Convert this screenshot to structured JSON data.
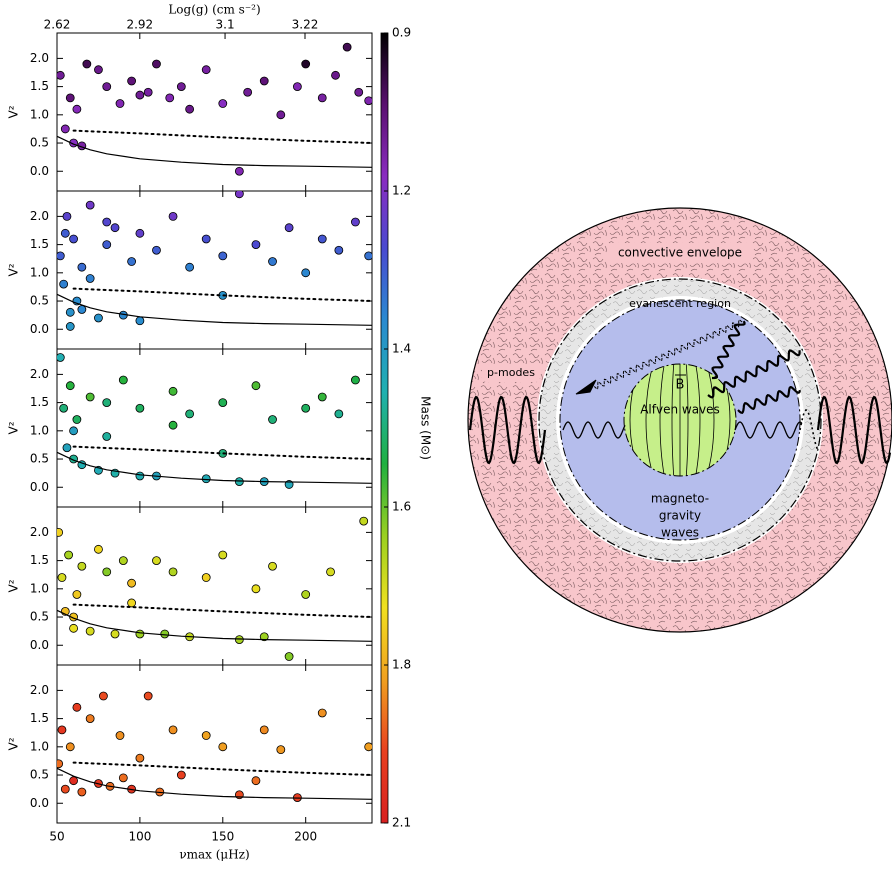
{
  "chart_data": [
    {
      "type": "scatter",
      "y_label": "V²",
      "xlim": [
        50,
        240
      ],
      "ylim": [
        -0.35,
        2.45
      ],
      "xticks": [
        50,
        100,
        150,
        200
      ],
      "yticks": [
        {
          "value": 0,
          "label": "0.0"
        },
        {
          "value": 0.5,
          "label": "0.5"
        },
        {
          "value": 1,
          "label": "1.0"
        },
        {
          "value": 1.5,
          "label": "1.5"
        },
        {
          "value": 2,
          "label": "2.0"
        }
      ],
      "x2label": "Log(g) (cm s⁻²)",
      "x2scale": "exp10",
      "x2lim": [
        2.62,
        3.3
      ],
      "x2ticks": [
        2.62,
        2.92,
        3.1,
        3.22
      ],
      "series": [
        {
          "x": [
            52,
            55,
            58,
            60,
            65,
            68,
            75,
            80,
            88,
            95,
            100,
            105,
            110,
            118,
            125,
            130,
            140,
            150,
            160,
            165,
            175,
            185,
            195,
            200,
            210,
            218,
            225,
            232,
            238,
            62
          ],
          "y": [
            1.7,
            0.75,
            1.3,
            0.5,
            0.45,
            1.9,
            1.8,
            1.5,
            1.2,
            1.6,
            1.35,
            1.4,
            1.9,
            1.3,
            1.5,
            1.1,
            1.8,
            1.2,
            0.0,
            1.4,
            1.6,
            1.0,
            1.5,
            1.9,
            1.3,
            1.7,
            2.2,
            1.4,
            1.25,
            1.1
          ],
          "mass": [
            1.1,
            1.15,
            1.05,
            1.18,
            1.12,
            1.0,
            1.08,
            1.1,
            1.15,
            1.05,
            1.1,
            1.12,
            1.02,
            1.15,
            1.1,
            1.08,
            1.12,
            1.18,
            1.15,
            1.1,
            1.05,
            1.1,
            1.15,
            0.95,
            1.12,
            1.08,
            1.0,
            1.1,
            1.14,
            1.16
          ]
        }
      ],
      "curves": [
        {
          "style": "solid",
          "x": [
            50,
            60,
            70,
            80,
            100,
            125,
            150,
            175,
            200,
            240
          ],
          "y": [
            0.62,
            0.48,
            0.38,
            0.31,
            0.22,
            0.16,
            0.12,
            0.1,
            0.09,
            0.07
          ]
        },
        {
          "style": "dotted",
          "x": [
            60,
            100,
            150,
            200,
            240
          ],
          "y": [
            0.72,
            0.67,
            0.6,
            0.54,
            0.5
          ]
        }
      ]
    },
    {
      "type": "scatter",
      "y_label": "V²",
      "xlim": [
        50,
        240
      ],
      "ylim": [
        -0.35,
        2.45
      ],
      "xticks": [
        50,
        100,
        150,
        200
      ],
      "yticks": [
        {
          "value": 0,
          "label": "0.0"
        },
        {
          "value": 0.5,
          "label": "0.5"
        },
        {
          "value": 1,
          "label": "1.0"
        },
        {
          "value": 1.5,
          "label": "1.5"
        },
        {
          "value": 2,
          "label": "2.0"
        }
      ],
      "series": [
        {
          "x": [
            52,
            54,
            56,
            58,
            60,
            62,
            65,
            70,
            75,
            80,
            85,
            90,
            95,
            100,
            110,
            120,
            130,
            140,
            150,
            160,
            170,
            180,
            190,
            200,
            210,
            220,
            230,
            238,
            58,
            70,
            80,
            100,
            55,
            65,
            150
          ],
          "y": [
            1.3,
            0.8,
            2.0,
            0.3,
            1.6,
            0.5,
            1.1,
            2.2,
            0.2,
            1.5,
            1.8,
            0.25,
            1.2,
            1.7,
            1.4,
            2.0,
            1.1,
            1.6,
            1.3,
            2.4,
            1.5,
            1.2,
            1.8,
            1.0,
            1.6,
            1.4,
            1.9,
            1.3,
            0.05,
            0.9,
            1.9,
            0.15,
            1.7,
            0.35,
            0.6
          ],
          "mass": [
            1.3,
            1.35,
            1.25,
            1.38,
            1.28,
            1.37,
            1.32,
            1.22,
            1.38,
            1.3,
            1.26,
            1.36,
            1.33,
            1.24,
            1.3,
            1.22,
            1.35,
            1.28,
            1.31,
            1.21,
            1.27,
            1.34,
            1.25,
            1.36,
            1.29,
            1.3,
            1.24,
            1.33,
            1.39,
            1.35,
            1.26,
            1.37,
            1.3,
            1.36,
            1.38
          ]
        }
      ],
      "curves": [
        {
          "style": "solid",
          "x": [
            50,
            60,
            70,
            80,
            100,
            125,
            150,
            175,
            200,
            240
          ],
          "y": [
            0.62,
            0.48,
            0.38,
            0.31,
            0.22,
            0.16,
            0.12,
            0.1,
            0.09,
            0.07
          ]
        },
        {
          "style": "dotted",
          "x": [
            60,
            100,
            150,
            200,
            240
          ],
          "y": [
            0.72,
            0.67,
            0.6,
            0.54,
            0.5
          ]
        }
      ]
    },
    {
      "type": "scatter",
      "y_label": "V²",
      "xlim": [
        50,
        240
      ],
      "ylim": [
        -0.35,
        2.45
      ],
      "xticks": [
        50,
        100,
        150,
        200
      ],
      "yticks": [
        {
          "value": 0,
          "label": "0.0"
        },
        {
          "value": 0.5,
          "label": "0.5"
        },
        {
          "value": 1,
          "label": "1.0"
        },
        {
          "value": 1.5,
          "label": "1.5"
        },
        {
          "value": 2,
          "label": "2.0"
        }
      ],
      "series": [
        {
          "x": [
            52,
            54,
            56,
            58,
            60,
            62,
            65,
            70,
            75,
            80,
            85,
            90,
            100,
            110,
            120,
            130,
            140,
            150,
            160,
            170,
            180,
            190,
            200,
            210,
            220,
            230,
            60,
            80,
            100,
            120,
            150,
            175
          ],
          "y": [
            2.3,
            1.4,
            0.7,
            1.8,
            0.5,
            1.2,
            0.4,
            1.6,
            0.3,
            1.5,
            0.25,
            1.9,
            1.4,
            0.2,
            1.7,
            1.3,
            0.15,
            1.5,
            0.1,
            1.8,
            1.2,
            0.05,
            1.4,
            1.6,
            1.3,
            1.9,
            1.0,
            0.9,
            0.2,
            1.1,
            0.6,
            0.1
          ],
          "mass": [
            1.45,
            1.5,
            1.42,
            1.55,
            1.48,
            1.52,
            1.45,
            1.58,
            1.44,
            1.5,
            1.46,
            1.55,
            1.52,
            1.42,
            1.57,
            1.5,
            1.44,
            1.53,
            1.46,
            1.58,
            1.5,
            1.43,
            1.52,
            1.56,
            1.48,
            1.54,
            1.41,
            1.47,
            1.45,
            1.55,
            1.5,
            1.42
          ]
        }
      ],
      "curves": [
        {
          "style": "solid",
          "x": [
            50,
            60,
            70,
            80,
            100,
            125,
            150,
            175,
            200,
            240
          ],
          "y": [
            0.62,
            0.48,
            0.38,
            0.31,
            0.22,
            0.16,
            0.12,
            0.1,
            0.09,
            0.07
          ]
        },
        {
          "style": "dotted",
          "x": [
            60,
            100,
            150,
            200,
            240
          ],
          "y": [
            0.72,
            0.67,
            0.6,
            0.54,
            0.5
          ]
        }
      ]
    },
    {
      "type": "scatter",
      "y_label": "V²",
      "xlim": [
        50,
        240
      ],
      "ylim": [
        -0.35,
        2.45
      ],
      "xticks": [
        50,
        100,
        150,
        200
      ],
      "yticks": [
        {
          "value": 0,
          "label": "0.0"
        },
        {
          "value": 0.5,
          "label": "0.5"
        },
        {
          "value": 1,
          "label": "1.0"
        },
        {
          "value": 1.5,
          "label": "1.5"
        },
        {
          "value": 2,
          "label": "2.0"
        }
      ],
      "series": [
        {
          "x": [
            51,
            53,
            55,
            57,
            60,
            62,
            65,
            70,
            75,
            80,
            85,
            90,
            95,
            100,
            110,
            115,
            120,
            130,
            140,
            150,
            160,
            170,
            175,
            180,
            190,
            200,
            215,
            235,
            60,
            95
          ],
          "y": [
            2.0,
            1.2,
            0.6,
            1.6,
            0.3,
            0.9,
            1.4,
            0.25,
            1.7,
            1.3,
            0.2,
            1.5,
            1.1,
            0.2,
            1.5,
            0.2,
            1.3,
            0.15,
            1.2,
            1.6,
            0.1,
            1.0,
            0.15,
            1.4,
            -0.2,
            0.9,
            1.3,
            2.2,
            0.5,
            0.75
          ],
          "mass": [
            1.75,
            1.7,
            1.78,
            1.65,
            1.72,
            1.76,
            1.68,
            1.7,
            1.74,
            1.62,
            1.7,
            1.66,
            1.78,
            1.64,
            1.7,
            1.62,
            1.66,
            1.68,
            1.75,
            1.7,
            1.65,
            1.72,
            1.64,
            1.7,
            1.62,
            1.66,
            1.7,
            1.68,
            1.77,
            1.74
          ]
        }
      ],
      "curves": [
        {
          "style": "solid",
          "x": [
            50,
            60,
            70,
            80,
            100,
            125,
            150,
            175,
            200,
            240
          ],
          "y": [
            0.62,
            0.48,
            0.38,
            0.31,
            0.22,
            0.16,
            0.12,
            0.1,
            0.09,
            0.07
          ]
        },
        {
          "style": "dotted",
          "x": [
            60,
            100,
            150,
            200,
            240
          ],
          "y": [
            0.72,
            0.67,
            0.6,
            0.54,
            0.5
          ]
        }
      ]
    },
    {
      "type": "scatter",
      "y_label": "V²",
      "x_label": "νmax (μHz)",
      "xlim": [
        50,
        240
      ],
      "ylim": [
        -0.35,
        2.45
      ],
      "xticks": [
        50,
        100,
        150,
        200
      ],
      "yticks": [
        {
          "value": 0,
          "label": "0.0"
        },
        {
          "value": 0.5,
          "label": "0.5"
        },
        {
          "value": 1,
          "label": "1.0"
        },
        {
          "value": 1.5,
          "label": "1.5"
        },
        {
          "value": 2,
          "label": "2.0"
        }
      ],
      "series": [
        {
          "x": [
            51,
            53,
            55,
            58,
            60,
            62,
            65,
            70,
            75,
            78,
            82,
            88,
            95,
            100,
            105,
            112,
            120,
            125,
            140,
            150,
            160,
            170,
            175,
            185,
            195,
            210,
            238,
            90
          ],
          "y": [
            0.7,
            1.3,
            0.25,
            1.0,
            0.4,
            1.7,
            0.2,
            1.5,
            0.35,
            1.9,
            0.3,
            1.2,
            0.25,
            0.8,
            1.9,
            0.2,
            1.3,
            0.5,
            1.2,
            1.0,
            0.15,
            0.4,
            1.3,
            0.95,
            0.1,
            1.6,
            1.0,
            0.45
          ],
          "mass": [
            1.9,
            2.0,
            1.95,
            1.85,
            2.05,
            1.98,
            1.92,
            1.88,
            2.0,
            1.95,
            1.9,
            1.85,
            2.02,
            1.88,
            1.95,
            1.9,
            1.85,
            1.97,
            1.82,
            1.83,
            1.95,
            1.9,
            1.86,
            1.84,
            1.98,
            1.85,
            1.83,
            1.9
          ]
        }
      ],
      "curves": [
        {
          "style": "solid",
          "x": [
            50,
            60,
            70,
            80,
            100,
            125,
            150,
            175,
            200,
            240
          ],
          "y": [
            0.62,
            0.48,
            0.38,
            0.31,
            0.22,
            0.16,
            0.12,
            0.1,
            0.09,
            0.07
          ]
        },
        {
          "style": "dotted",
          "x": [
            60,
            100,
            150,
            200,
            240
          ],
          "y": [
            0.72,
            0.67,
            0.6,
            0.54,
            0.5
          ]
        }
      ]
    }
  ],
  "colorbar": {
    "label": "Mass (M⊙)",
    "lim": [
      0.9,
      2.1
    ],
    "scale": "piecewise-equal",
    "ticks": [
      0.9,
      1.2,
      1.4,
      1.6,
      1.8,
      2.1
    ],
    "colormap": [
      "#000000",
      "#5a1070",
      "#8a2cc0",
      "#4a4ad0",
      "#2a8ad0",
      "#20b0b0",
      "#20b040",
      "#9ad020",
      "#f0e020",
      "#f0a020",
      "#e84020",
      "#d82020"
    ]
  },
  "diagram": {
    "envelope": "convective envelope",
    "evanescent": "evanescent region",
    "p_modes": "p-modes",
    "field": "B",
    "alfven": "Alfven waves",
    "gravity": [
      "magneto-",
      "gravity",
      "waves"
    ]
  }
}
